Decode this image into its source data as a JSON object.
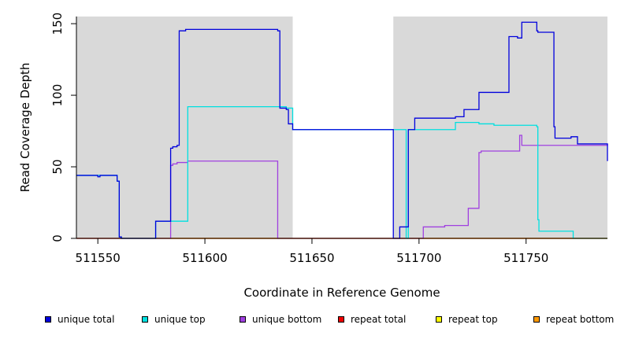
{
  "chart_data": {
    "type": "line",
    "title": "",
    "xlabel": "Coordinate in Reference Genome",
    "ylabel": "Read Coverage Depth",
    "xlim": [
      511540,
      511788
    ],
    "ylim": [
      0,
      155
    ],
    "xticks": [
      511550,
      511600,
      511650,
      511700,
      511750
    ],
    "yticks": [
      0,
      50,
      100,
      150
    ],
    "xtick_labels": [
      "511550",
      "511600",
      "511650",
      "511700",
      "511750"
    ],
    "ytick_labels": [
      "0",
      "50",
      "100",
      "150"
    ],
    "shaded_regions": [
      {
        "x_start": 511540,
        "x_end": 511641,
        "color": "#d9d9d9"
      },
      {
        "x_start": 511688,
        "x_end": 511788,
        "color": "#d9d9d9"
      }
    ],
    "legend_position": "bottom",
    "series": [
      {
        "name": "unique total",
        "color": "#0000dd",
        "x": [
          511540,
          511550,
          511551,
          511559,
          511560,
          511561,
          511577,
          511584,
          511585,
          511587,
          511588,
          511591,
          511592,
          511634,
          511635,
          511638,
          511639,
          511641,
          511688,
          511691,
          511694,
          511695,
          511698,
          511700,
          511717,
          511721,
          511724,
          511728,
          511742,
          511746,
          511747,
          511748,
          511755,
          511755.5,
          511763,
          511763.5,
          511771,
          511774,
          511784,
          511788
        ],
        "y": [
          44,
          43,
          44,
          40,
          1,
          0,
          12,
          63,
          64,
          65,
          145,
          146,
          146,
          145,
          91,
          90,
          80,
          76,
          0,
          8,
          8,
          76,
          84,
          84,
          85,
          90,
          90,
          102,
          141,
          140,
          140,
          151,
          145,
          144,
          78,
          70,
          71,
          66,
          66,
          54
        ],
        "step": "post"
      },
      {
        "name": "unique top",
        "color": "#00e0e0",
        "x": [
          511540,
          511559,
          511560,
          511561,
          511577,
          511584,
          511592,
          511634,
          511638,
          511641,
          511694,
          511695,
          511712,
          511717,
          511722,
          511728,
          511735,
          511755,
          511755.5,
          511756,
          511772,
          511788
        ],
        "y": [
          44,
          40,
          1,
          0,
          12,
          12,
          92,
          92,
          91,
          76,
          0,
          76,
          76,
          81,
          81,
          80,
          79,
          78,
          13,
          5,
          0,
          0
        ],
        "step": "post"
      },
      {
        "name": "unique bottom",
        "color": "#a040e0",
        "x": [
          511540,
          511584,
          511585,
          511587,
          511591,
          511592,
          511633,
          511634,
          511695,
          511702,
          511712,
          511723,
          511728,
          511729,
          511746,
          511747,
          511748,
          511756,
          511788
        ],
        "y": [
          0,
          51,
          52,
          53,
          53,
          54,
          54,
          0,
          0,
          8,
          9,
          21,
          60,
          61,
          61,
          72,
          65,
          65,
          66
        ],
        "step": "post"
      },
      {
        "name": "repeat total",
        "color": "#ee0000",
        "x": [
          511540,
          511788
        ],
        "y": [
          0,
          0
        ],
        "step": "post"
      },
      {
        "name": "repeat top",
        "color": "#ffff00",
        "x": [
          511540,
          511788
        ],
        "y": [
          0,
          0
        ],
        "step": "post"
      },
      {
        "name": "repeat bottom",
        "color": "#ff9900",
        "x": [
          511540,
          511788
        ],
        "y": [
          0,
          0
        ],
        "step": "post"
      }
    ]
  }
}
